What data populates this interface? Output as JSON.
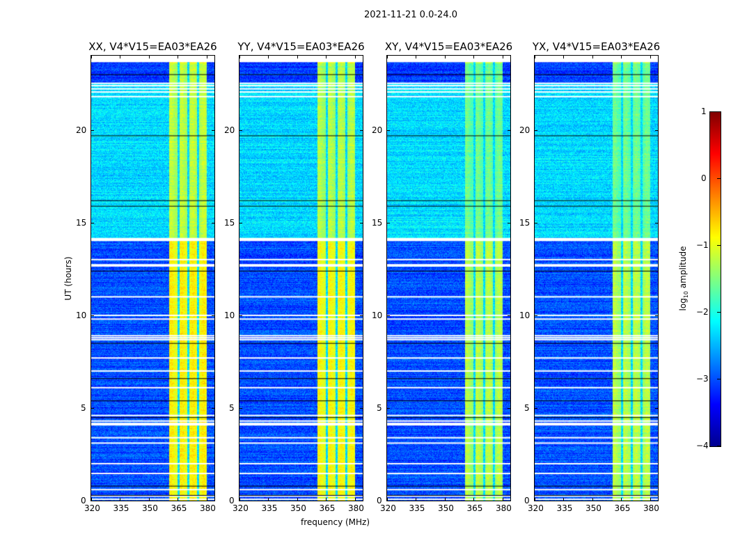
{
  "suptitle": "2021-11-21 0.0-24.0",
  "xlabel": "frequency (MHz)",
  "ylabel": "UT (hours)",
  "colorbar": {
    "label_prefix": "log",
    "label_sub": "10",
    "label_suffix": " amplitude",
    "range": [
      -4,
      1
    ],
    "ticks": [
      "1",
      "0",
      "−1",
      "−2",
      "−3",
      "−4"
    ],
    "tick_values": [
      1,
      0,
      -1,
      -2,
      -3,
      -4
    ],
    "colormap": "jet"
  },
  "chart_data": [
    {
      "type": "heatmap",
      "title": "XX, V4*V15=EA03*EA26",
      "band_level": -0.9,
      "xlim": [
        320,
        384
      ],
      "ylim": [
        0,
        24
      ]
    },
    {
      "type": "heatmap",
      "title": "YY, V4*V15=EA03*EA26",
      "band_level": -0.95,
      "xlim": [
        320,
        384
      ],
      "ylim": [
        0,
        24
      ]
    },
    {
      "type": "heatmap",
      "title": "XY, V4*V15=EA03*EA26",
      "band_level": -1.3,
      "xlim": [
        320,
        384
      ],
      "ylim": [
        0,
        24
      ]
    },
    {
      "type": "heatmap",
      "title": "YX, V4*V15=EA03*EA26",
      "band_level": -1.3,
      "xlim": [
        320,
        384
      ],
      "ylim": [
        0,
        24
      ]
    }
  ],
  "shared": {
    "xticks": [
      "320",
      "335",
      "350",
      "365",
      "380"
    ],
    "xtick_values": [
      320,
      335,
      350,
      365,
      380
    ],
    "yticks": [
      "0",
      "5",
      "10",
      "15",
      "20"
    ],
    "ytick_values": [
      0,
      5,
      10,
      15,
      20
    ],
    "band_mhz": [
      360.4,
      380
    ],
    "band_notches_mhz": [
      365.1,
      370.2,
      375.2
    ],
    "background_level_low_ut": -3.0,
    "background_level_high_ut": -2.3,
    "flagged_ut_white": [
      [
        23.65,
        24
      ],
      [
        22.5,
        22.55
      ],
      [
        22.38,
        22.42
      ],
      [
        22.2,
        22.25
      ],
      [
        22.05,
        22.08
      ],
      [
        21.8,
        21.83
      ],
      [
        14.0,
        14.17
      ],
      [
        13.0,
        13.04
      ],
      [
        12.62,
        12.76
      ],
      [
        11.0,
        11.03
      ],
      [
        10.0,
        10.03
      ],
      [
        9.8,
        9.83
      ],
      [
        8.9,
        8.93
      ],
      [
        8.8,
        8.82
      ],
      [
        8.7,
        8.72
      ],
      [
        7.7,
        7.73
      ],
      [
        7.0,
        7.03
      ],
      [
        6.1,
        6.13
      ],
      [
        4.6,
        4.63
      ],
      [
        4.3,
        4.33
      ],
      [
        4.05,
        4.2
      ],
      [
        3.4,
        3.43
      ],
      [
        3.1,
        3.14
      ],
      [
        2.0,
        2.03
      ],
      [
        1.45,
        1.5
      ],
      [
        0.6,
        0.63
      ],
      [
        0.25,
        0.28
      ],
      [
        0.08,
        0.11
      ]
    ],
    "flagged_ut_black": [
      23.0,
      19.7,
      16.2,
      15.9,
      12.4,
      8.5,
      6.6,
      5.4,
      4.5,
      0.8,
      0.3
    ]
  }
}
